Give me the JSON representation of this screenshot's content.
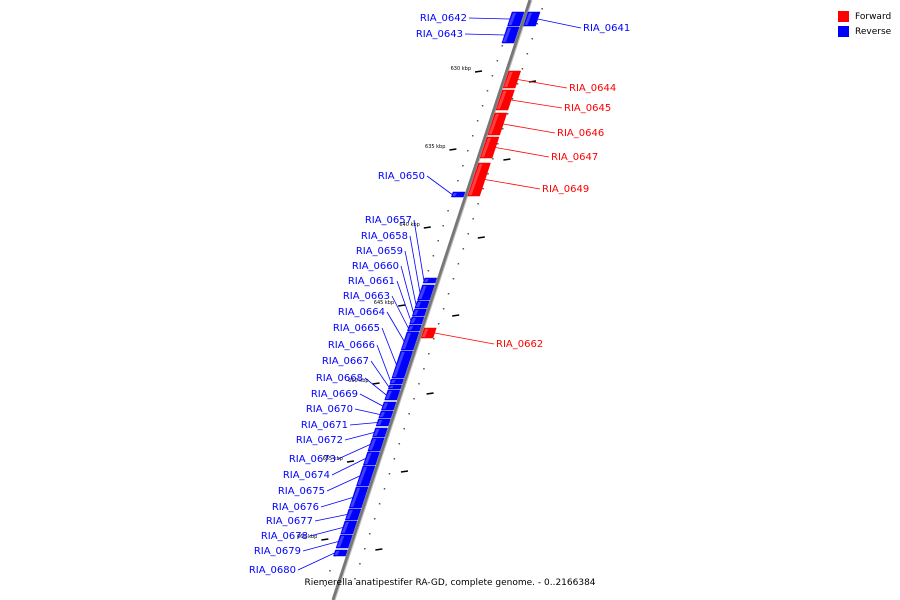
{
  "caption": "Riemerella anatipestifer RA-GD, complete genome. - 0..2166384",
  "legend": [
    {
      "label": "Forward",
      "color": "#ff0000"
    },
    {
      "label": "Reverse",
      "color": "#0000ff"
    }
  ],
  "colors": {
    "forward": "#ff0000",
    "reverse": "#0000ff",
    "backbone": "#777777"
  },
  "scale_ticks": [
    "630 kbp",
    "635 kbp",
    "640 kbp",
    "645 kbp",
    "650 kbp",
    "655 kbp",
    "660 kbp"
  ],
  "genes": [
    {
      "name": "RIA_0641",
      "strand": "reverse"
    },
    {
      "name": "RIA_0642",
      "strand": "reverse"
    },
    {
      "name": "RIA_0643",
      "strand": "reverse"
    },
    {
      "name": "RIA_0644",
      "strand": "forward"
    },
    {
      "name": "RIA_0645",
      "strand": "forward"
    },
    {
      "name": "RIA_0646",
      "strand": "forward"
    },
    {
      "name": "RIA_0647",
      "strand": "forward"
    },
    {
      "name": "RIA_0649",
      "strand": "forward"
    },
    {
      "name": "RIA_0650",
      "strand": "reverse"
    },
    {
      "name": "RIA_0657",
      "strand": "reverse"
    },
    {
      "name": "RIA_0658",
      "strand": "reverse"
    },
    {
      "name": "RIA_0659",
      "strand": "reverse"
    },
    {
      "name": "RIA_0660",
      "strand": "reverse"
    },
    {
      "name": "RIA_0661",
      "strand": "reverse"
    },
    {
      "name": "RIA_0662",
      "strand": "forward"
    },
    {
      "name": "RIA_0663",
      "strand": "reverse"
    },
    {
      "name": "RIA_0664",
      "strand": "reverse"
    },
    {
      "name": "RIA_0665",
      "strand": "reverse"
    },
    {
      "name": "RIA_0666",
      "strand": "reverse"
    },
    {
      "name": "RIA_0667",
      "strand": "reverse"
    },
    {
      "name": "RIA_0668",
      "strand": "reverse"
    },
    {
      "name": "RIA_0669",
      "strand": "reverse"
    },
    {
      "name": "RIA_0670",
      "strand": "reverse"
    },
    {
      "name": "RIA_0671",
      "strand": "reverse"
    },
    {
      "name": "RIA_0672",
      "strand": "reverse"
    },
    {
      "name": "RIA_0673",
      "strand": "reverse"
    },
    {
      "name": "RIA_0674",
      "strand": "reverse"
    },
    {
      "name": "RIA_0675",
      "strand": "reverse"
    },
    {
      "name": "RIA_0676",
      "strand": "reverse"
    },
    {
      "name": "RIA_0677",
      "strand": "reverse"
    },
    {
      "name": "RIA_0678",
      "strand": "reverse"
    },
    {
      "name": "RIA_0679",
      "strand": "reverse"
    },
    {
      "name": "RIA_0680",
      "strand": "reverse"
    }
  ]
}
